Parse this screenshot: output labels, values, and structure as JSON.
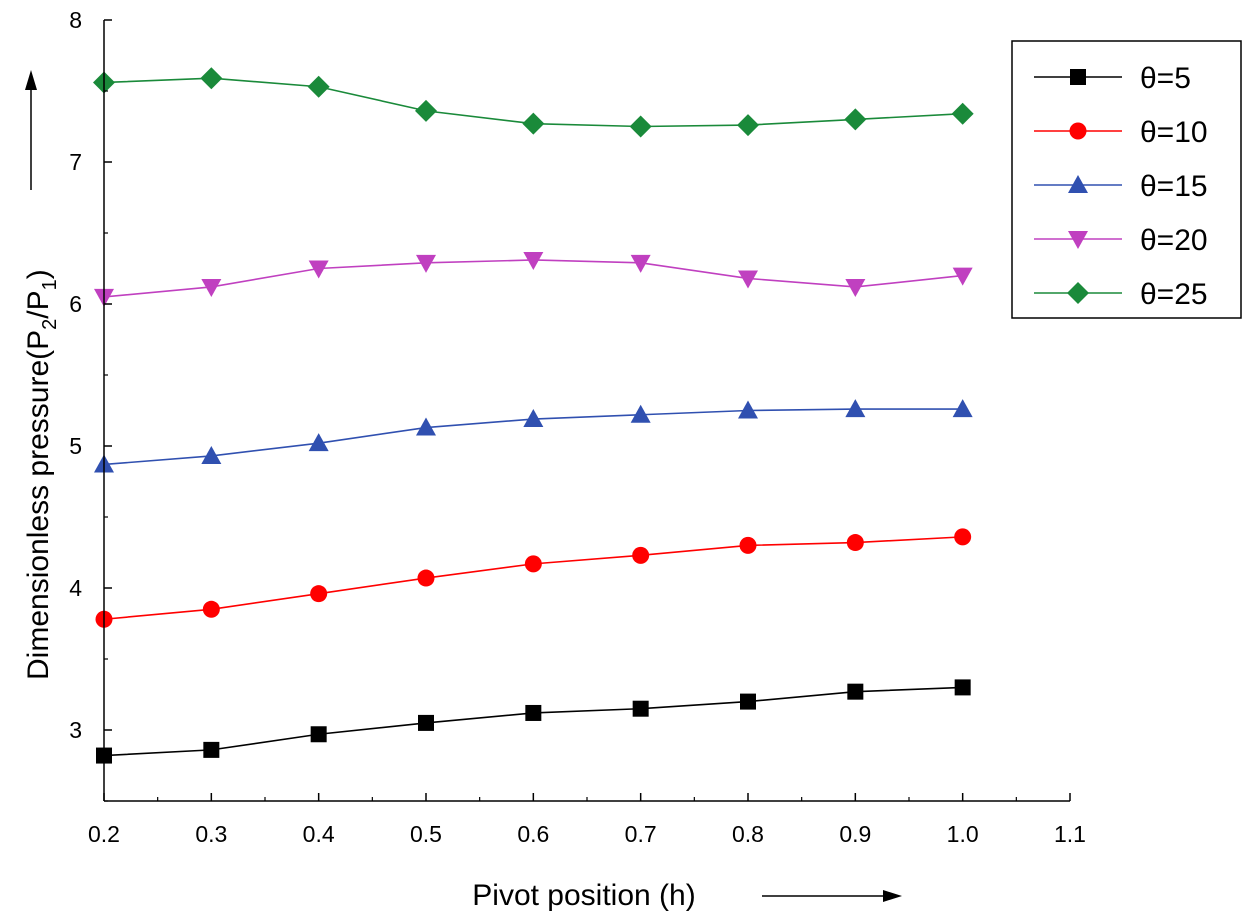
{
  "chart_data": {
    "type": "line",
    "title": "",
    "xlabel": "Pivot position (h)",
    "ylabel": "Dimensionless pressure(P₂/P₁)",
    "ylabel_parts": {
      "pre": "Dimensionless pressure(P",
      "sub1": "2",
      "mid": "/P",
      "sub2": "1",
      "post": ")"
    },
    "xlim": [
      0.2,
      1.1
    ],
    "ylim": [
      2.5,
      8
    ],
    "x_ticks": [
      "0.2",
      "0.3",
      "0.4",
      "0.5",
      "0.6",
      "0.7",
      "0.8",
      "0.9",
      "1.0",
      "1.1"
    ],
    "y_ticks": [
      "3",
      "4",
      "5",
      "6",
      "7",
      "8"
    ],
    "x": [
      0.2,
      0.3,
      0.4,
      0.5,
      0.6,
      0.7,
      0.8,
      0.9,
      1.0
    ],
    "legend_position": "top-right",
    "series": [
      {
        "name": "θ=5",
        "color": "#000000",
        "marker": "square",
        "values": [
          2.82,
          2.86,
          2.97,
          3.05,
          3.12,
          3.15,
          3.2,
          3.27,
          3.3
        ]
      },
      {
        "name": "θ=10",
        "color": "#ff0000",
        "marker": "circle",
        "values": [
          3.78,
          3.85,
          3.96,
          4.07,
          4.17,
          4.23,
          4.3,
          4.32,
          4.36
        ]
      },
      {
        "name": "θ=15",
        "color": "#3050b0",
        "marker": "triangle-up",
        "values": [
          4.87,
          4.93,
          5.02,
          5.13,
          5.19,
          5.22,
          5.25,
          5.26,
          5.26
        ]
      },
      {
        "name": "θ=20",
        "color": "#c040c0",
        "marker": "triangle-down",
        "values": [
          6.05,
          6.12,
          6.25,
          6.29,
          6.31,
          6.29,
          6.18,
          6.12,
          6.2
        ]
      },
      {
        "name": "θ=25",
        "color": "#1a8a3a",
        "marker": "diamond",
        "values": [
          7.56,
          7.59,
          7.53,
          7.36,
          7.27,
          7.25,
          7.26,
          7.3,
          7.34
        ]
      }
    ]
  }
}
